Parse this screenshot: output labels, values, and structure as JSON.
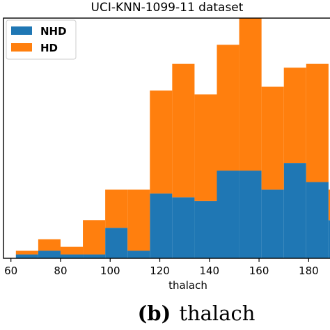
{
  "chart_data": {
    "type": "bar",
    "stacked": true,
    "title": "UCI-KNN-1099-11 dataset",
    "xlabel": "thalach",
    "ylabel": "",
    "xlim": [
      57,
      190
    ],
    "xticks": [
      60,
      80,
      100,
      120,
      140,
      160,
      180
    ],
    "ylim": [
      0,
      63
    ],
    "bin_edges": [
      62,
      71,
      80,
      89,
      98,
      107,
      116,
      125,
      134,
      143,
      152,
      161,
      170,
      179,
      188,
      197
    ],
    "series": [
      {
        "name": "NHD",
        "color": "#1f77b4",
        "values": [
          1,
          2,
          1,
          1,
          8,
          2,
          17,
          16,
          15,
          23,
          23,
          18,
          25,
          20,
          10
        ]
      },
      {
        "name": "HD",
        "color": "#ff7f0e",
        "values": [
          1,
          3,
          2,
          9,
          10,
          16,
          27,
          35,
          28,
          33,
          40,
          27,
          25,
          31,
          8
        ]
      }
    ],
    "grid": false,
    "legend_position": "top-left"
  },
  "caption": {
    "label": "(b)",
    "text": "thalach"
  }
}
